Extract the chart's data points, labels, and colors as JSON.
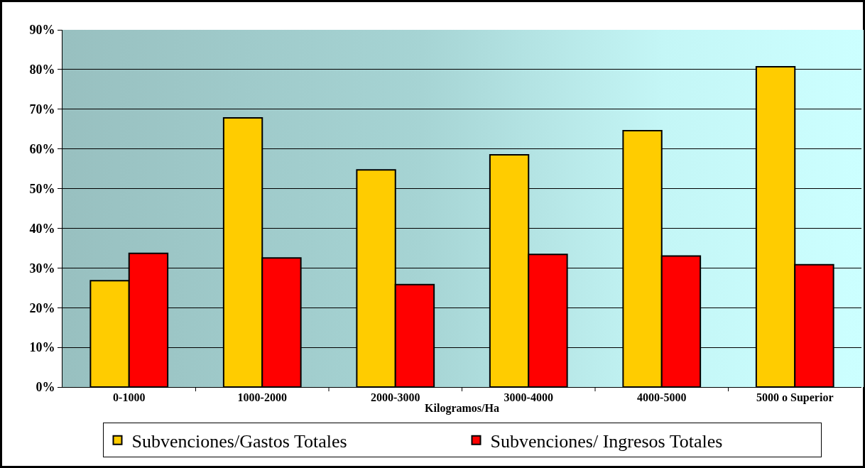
{
  "chart_data": {
    "type": "bar",
    "xlabel": "Kilogramos/Ha",
    "categories": [
      "0-1000",
      "1000-2000",
      "2000-3000",
      "3000-4000",
      "4000-5000",
      "5000 o Superior"
    ],
    "series": [
      {
        "name": "Subvenciones/Gastos Totales",
        "color": "#ffcc00",
        "values": [
          26.8,
          67.8,
          54.7,
          58.5,
          64.6,
          80.7
        ]
      },
      {
        "name": "Subvenciones/ Ingresos Totales",
        "color": "#ff0000",
        "values": [
          33.7,
          32.5,
          25.8,
          33.4,
          33.0,
          30.8
        ]
      }
    ],
    "ylim": [
      0,
      90
    ],
    "yticks": [
      {
        "value": 0,
        "label": "0%"
      },
      {
        "value": 10,
        "label": "10%"
      },
      {
        "value": 20,
        "label": "20%"
      },
      {
        "value": 30,
        "label": "30%"
      },
      {
        "value": 40,
        "label": "40%"
      },
      {
        "value": 50,
        "label": "50%"
      },
      {
        "value": 60,
        "label": "60%"
      },
      {
        "value": 70,
        "label": "70%"
      },
      {
        "value": 80,
        "label": "80%"
      },
      {
        "value": 90,
        "label": "90%"
      }
    ],
    "grid": "y",
    "legend": "bottom"
  }
}
